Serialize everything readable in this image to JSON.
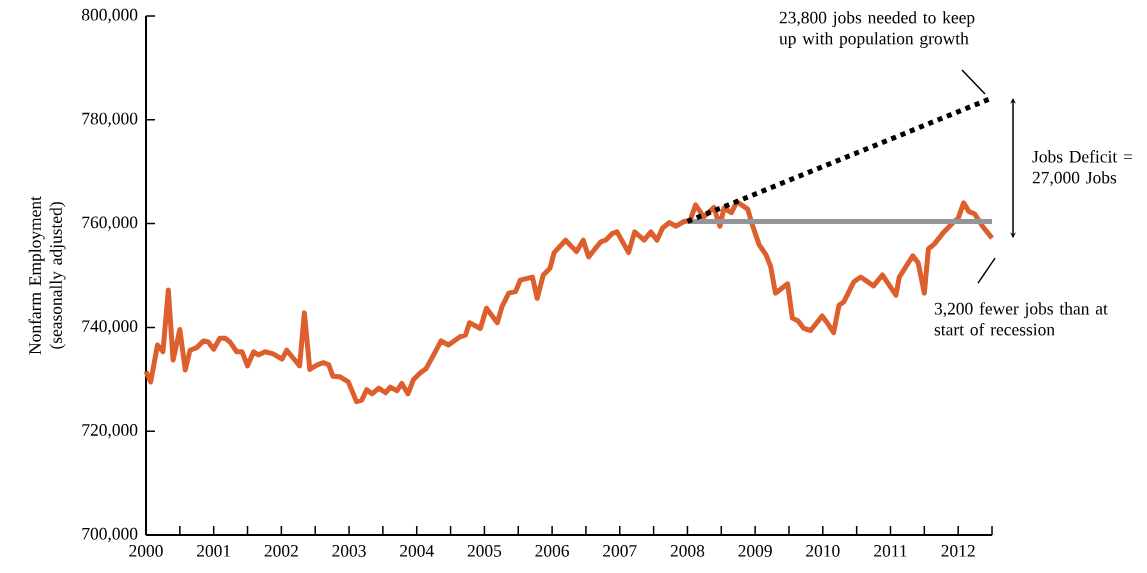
{
  "chart_data": {
    "type": "line",
    "ylabel": "Nonfarm Employment (seasonally adjusted)",
    "xlim": [
      2000,
      2012.5
    ],
    "ylim": [
      700000,
      800000
    ],
    "xticks": [
      2000,
      {
        "value": 2000.5,
        "label": null
      },
      2001,
      {
        "value": 2001.5,
        "label": null
      },
      2002,
      {
        "value": 2002.5,
        "label": null
      },
      2003,
      {
        "value": 2003.5,
        "label": null
      },
      2004,
      {
        "value": 2004.5,
        "label": null
      },
      2005,
      {
        "value": 2005.5,
        "label": null
      },
      2006,
      {
        "value": 2006.5,
        "label": null
      },
      2007,
      {
        "value": 2007.5,
        "label": null
      },
      2008,
      {
        "value": 2008.5,
        "label": null
      },
      2009,
      {
        "value": 2009.5,
        "label": null
      },
      2010,
      {
        "value": 2010.5,
        "label": null
      },
      2011,
      {
        "value": 2011.5,
        "label": null
      },
      2012,
      {
        "value": 2012.5,
        "label": null
      }
    ],
    "yticks": [
      {
        "value": 700000,
        "label": "700,000"
      },
      {
        "value": 720000,
        "label": "720,000"
      },
      {
        "value": 740000,
        "label": "740,000"
      },
      {
        "value": 760000,
        "label": "760,000"
      },
      {
        "value": 780000,
        "label": "780,000"
      },
      {
        "value": 800000,
        "label": "800,000"
      }
    ],
    "series": [
      {
        "type": "line",
        "color": "#dd5f2e",
        "line_style": "solid",
        "x": [
          2000.0,
          2000.07,
          2000.17,
          2000.25,
          2000.33,
          2000.4,
          2000.5,
          2000.58,
          2000.65,
          2000.75,
          2000.85,
          2000.92,
          2001.0,
          2001.09,
          2001.17,
          2001.24,
          2001.34,
          2001.42,
          2001.5,
          2001.59,
          2001.66,
          2001.76,
          2001.88,
          2002.01,
          2002.08,
          2002.18,
          2002.27,
          2002.34,
          2002.42,
          2002.53,
          2002.62,
          2002.7,
          2002.76,
          2002.86,
          2002.99,
          2003.11,
          2003.19,
          2003.26,
          2003.34,
          2003.44,
          2003.54,
          2003.61,
          2003.71,
          2003.78,
          2003.87,
          2003.95,
          2004.05,
          2004.14,
          2004.25,
          2004.36,
          2004.47,
          2004.64,
          2004.72,
          2004.78,
          2004.94,
          2005.03,
          2005.19,
          2005.26,
          2005.36,
          2005.46,
          2005.53,
          2005.71,
          2005.78,
          2005.87,
          2005.97,
          2006.03,
          2006.2,
          2006.36,
          2006.46,
          2006.54,
          2006.72,
          2006.79,
          2006.89,
          2006.96,
          2007.13,
          2007.22,
          2007.36,
          2007.46,
          2007.55,
          2007.63,
          2007.73,
          2007.83,
          2007.95,
          2008.04,
          2008.12,
          2008.24,
          2008.39,
          2008.48,
          2008.54,
          2008.65,
          2008.73,
          2008.89,
          2008.96,
          2009.06,
          2009.16,
          2009.23,
          2009.3,
          2009.48,
          2009.55,
          2009.63,
          2009.72,
          2009.82,
          2009.99,
          2010.07,
          2010.16,
          2010.24,
          2010.31,
          2010.46,
          2010.56,
          2010.75,
          2010.88,
          2011.08,
          2011.13,
          2011.33,
          2011.41,
          2011.5,
          2011.56,
          2011.65,
          2011.79,
          2011.94,
          2012.0,
          2012.08,
          2012.16,
          2012.24,
          2012.36,
          2012.5
        ],
        "values": [
          731500,
          729500,
          736600,
          735300,
          747200,
          733700,
          739600,
          731800,
          735600,
          736100,
          737400,
          737200,
          735800,
          737900,
          737900,
          737200,
          735300,
          735300,
          732600,
          735300,
          734700,
          735300,
          734900,
          733900,
          735600,
          734000,
          732600,
          742800,
          731900,
          732800,
          733200,
          732800,
          730600,
          730500,
          729500,
          725700,
          726000,
          728000,
          727200,
          728300,
          727400,
          728500,
          727800,
          729200,
          727200,
          729900,
          731200,
          732100,
          734700,
          737400,
          736600,
          738200,
          738500,
          740900,
          739800,
          743700,
          740900,
          744000,
          746600,
          746900,
          749100,
          749700,
          745600,
          750100,
          751400,
          754400,
          756800,
          754600,
          756800,
          753600,
          756500,
          756800,
          758100,
          758400,
          754400,
          758400,
          756800,
          758400,
          756800,
          759100,
          760200,
          759500,
          760400,
          760600,
          763600,
          761300,
          763100,
          759500,
          763000,
          762100,
          764200,
          762800,
          759700,
          755900,
          754000,
          751700,
          746600,
          748400,
          741800,
          741300,
          739800,
          739400,
          742200,
          740800,
          739000,
          744300,
          744900,
          748800,
          749700,
          748000,
          750100,
          746200,
          749700,
          753800,
          752400,
          746600,
          755100,
          756100,
          758400,
          760400,
          761000,
          764000,
          762300,
          761900,
          759500,
          757200
        ]
      },
      {
        "type": "line",
        "color": "#939598",
        "line_style": "solid",
        "x": [
          2008,
          2012.5
        ],
        "values": [
          760400,
          760400
        ]
      },
      {
        "type": "line",
        "color": "#000000",
        "line_style": "dotted",
        "x": [
          2008,
          2012.5
        ],
        "values": [
          760400,
          784200
        ]
      }
    ],
    "annotations": [
      "23,800 jobs needed to keep up with population growth",
      "Jobs Deficit = 27,000 Jobs",
      "3,200 fewer jobs than at start of recession"
    ]
  }
}
